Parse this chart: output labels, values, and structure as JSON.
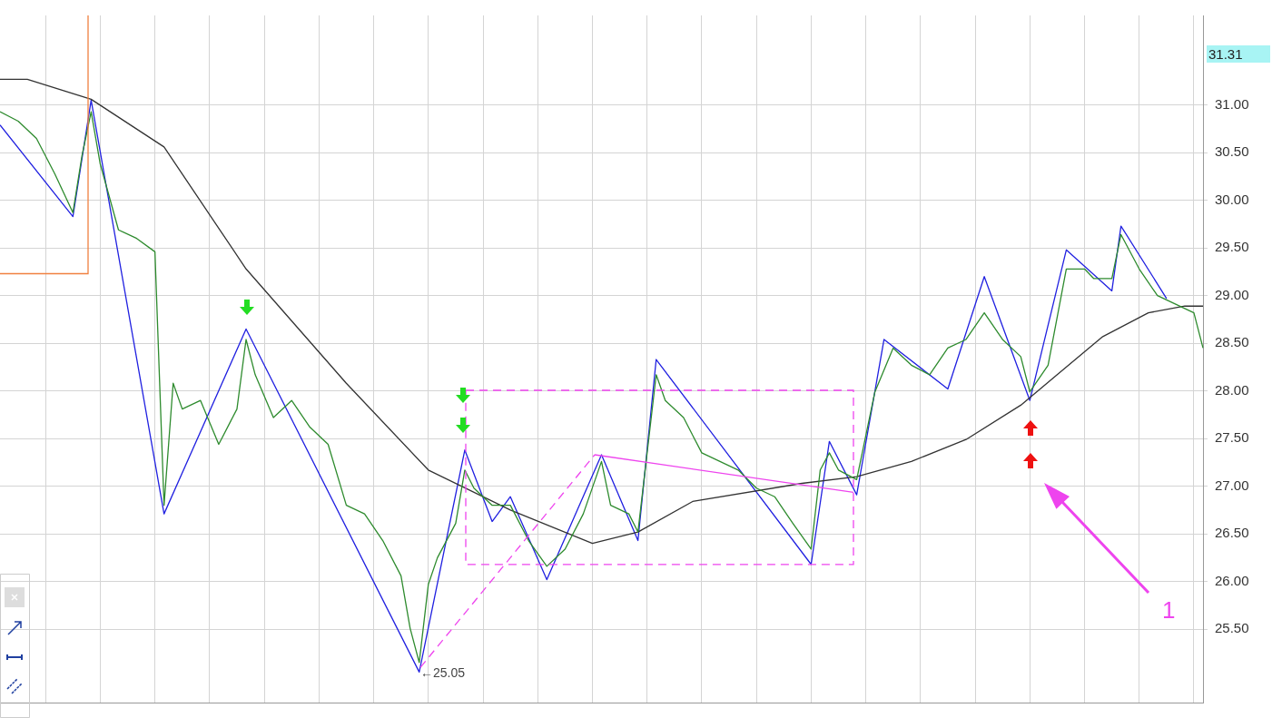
{
  "chart_data": {
    "type": "line",
    "categories": [
      null,
      null,
      null,
      null,
      null,
      null,
      null,
      null,
      null,
      null,
      null,
      null,
      null,
      null,
      null,
      null,
      null,
      null,
      null,
      null,
      null,
      null,
      null,
      null,
      null,
      null,
      null,
      null,
      null,
      null,
      null,
      null,
      null,
      null,
      null,
      null,
      null,
      null,
      null,
      null,
      null,
      null,
      null,
      null,
      null,
      null,
      null,
      null,
      null,
      null,
      null,
      null,
      null,
      null,
      null,
      null,
      null,
      null,
      null,
      null,
      null,
      null,
      null,
      null,
      null,
      null,
      null,
      null,
      null,
      null,
      null,
      null,
      null,
      null,
      null,
      null,
      null,
      null,
      null,
      null,
      null,
      null,
      null,
      null,
      null,
      null,
      null,
      null,
      null,
      null,
      null,
      null,
      null,
      null,
      null,
      null,
      null,
      null,
      null,
      null,
      null,
      null,
      null,
      null,
      null,
      null,
      null,
      null,
      null,
      null,
      null,
      null,
      null,
      null,
      null,
      null,
      null,
      null,
      null,
      null,
      null,
      null,
      null,
      null,
      null,
      null,
      null,
      null,
      null,
      null,
      null,
      null,
      null
    ],
    "ylim": [
      24.73,
      31.94
    ],
    "yticks": [
      {
        "value": 25.5,
        "label": "25.50"
      },
      {
        "value": 26,
        "label": "26.00"
      },
      {
        "value": 26.5,
        "label": "26.50"
      },
      {
        "value": 27,
        "label": "27.00"
      },
      {
        "value": 27.5,
        "label": "27.50"
      },
      {
        "value": 28,
        "label": "28.00"
      },
      {
        "value": 28.5,
        "label": "28.50"
      },
      {
        "value": 29,
        "label": "29.00"
      },
      {
        "value": 29.5,
        "label": "29.50"
      },
      {
        "value": 30,
        "label": "30.00"
      },
      {
        "value": 30.5,
        "label": "30.50"
      },
      {
        "value": 31,
        "label": "31.00"
      }
    ],
    "tick_labels": "y",
    "grid": true,
    "legend": false,
    "marker": "none",
    "series": [
      {
        "color": "#2e8b2e",
        "values": [
          30.93,
          null,
          30.83,
          null,
          30.65,
          null,
          30.28,
          null,
          29.87,
          30.47,
          30.93,
          30.38,
          null,
          29.69,
          null,
          29.6,
          null,
          29.46,
          26.8,
          28.08,
          27.81,
          null,
          27.9,
          null,
          27.44,
          null,
          27.81,
          28.54,
          28.17,
          null,
          27.72,
          null,
          27.9,
          null,
          27.62,
          null,
          27.44,
          null,
          26.8,
          null,
          26.71,
          null,
          26.43,
          null,
          26.06,
          25.51,
          25.15,
          25.97,
          26.25,
          null,
          26.61,
          27.17,
          26.98,
          null,
          26.8,
          null,
          26.8,
          null,
          26.43,
          null,
          26.16,
          null,
          26.34,
          null,
          26.71,
          null,
          27.26,
          26.8,
          null,
          26.71,
          26.52,
          null,
          28.17,
          27.9,
          null,
          27.72,
          null,
          27.35,
          null,
          27.26,
          null,
          27.17,
          null,
          26.98,
          null,
          26.89,
          null,
          26.61,
          null,
          26.34,
          27.17,
          27.35,
          27.17,
          null,
          27.07,
          null,
          27.99,
          null,
          28.45,
          null,
          28.27,
          null,
          28.17,
          null,
          28.45,
          null,
          28.54,
          null,
          28.82,
          null,
          28.54,
          null,
          28.36,
          27.99,
          null,
          28.27,
          null,
          29.28,
          null,
          29.28,
          29.18,
          null,
          29.18,
          29.64,
          null,
          29.28,
          null,
          29.0,
          null,
          28.91,
          null,
          28.82,
          28.45
        ]
      },
      {
        "color": "#333333",
        "values": [
          31.27,
          null,
          null,
          31.27,
          null,
          null,
          null,
          null,
          null,
          null,
          31.06,
          null,
          null,
          null,
          null,
          null,
          null,
          null,
          30.56,
          null,
          null,
          null,
          null,
          null,
          null,
          null,
          null,
          29.28,
          null,
          null,
          null,
          null,
          null,
          null,
          null,
          null,
          null,
          null,
          28.08,
          null,
          null,
          null,
          null,
          null,
          null,
          null,
          null,
          27.17,
          null,
          null,
          null,
          null,
          null,
          null,
          null,
          null,
          26.75,
          null,
          null,
          null,
          null,
          null,
          null,
          null,
          null,
          26.4,
          null,
          null,
          null,
          null,
          26.52,
          null,
          null,
          null,
          null,
          null,
          26.84,
          null,
          null,
          null,
          null,
          null,
          null,
          null,
          null,
          null,
          null,
          null,
          27.03,
          null,
          null,
          null,
          null,
          null,
          27.1,
          null,
          null,
          null,
          null,
          null,
          27.26,
          null,
          null,
          null,
          null,
          null,
          27.49,
          null,
          null,
          null,
          null,
          null,
          27.85,
          null,
          null,
          null,
          28.17,
          null,
          null,
          null,
          null,
          28.57,
          null,
          null,
          null,
          null,
          28.82,
          null,
          null,
          null,
          28.89,
          null,
          28.89
        ]
      },
      {
        "color": "#2020e0",
        "values": [
          30.79,
          null,
          null,
          null,
          null,
          null,
          null,
          null,
          29.83,
          null,
          31.05,
          null,
          null,
          null,
          null,
          null,
          null,
          null,
          26.71,
          null,
          null,
          null,
          null,
          null,
          null,
          null,
          null,
          28.65,
          null,
          null,
          null,
          null,
          null,
          null,
          null,
          null,
          null,
          null,
          null,
          null,
          null,
          null,
          null,
          null,
          null,
          null,
          25.05,
          null,
          null,
          null,
          null,
          27.38,
          null,
          null,
          26.63,
          null,
          26.89,
          null,
          null,
          null,
          26.02,
          null,
          null,
          null,
          null,
          null,
          27.33,
          null,
          null,
          null,
          26.43,
          null,
          28.33,
          null,
          null,
          null,
          null,
          null,
          null,
          null,
          null,
          null,
          null,
          null,
          null,
          null,
          null,
          null,
          null,
          26.18,
          null,
          27.47,
          null,
          null,
          26.91,
          null,
          null,
          28.54,
          null,
          null,
          null,
          null,
          null,
          null,
          28.02,
          null,
          null,
          null,
          29.2,
          null,
          null,
          null,
          null,
          27.9,
          null,
          null,
          null,
          29.48,
          null,
          null,
          null,
          null,
          29.05,
          29.73,
          null,
          null,
          null,
          null,
          28.97,
          null,
          null,
          null,
          null
        ]
      }
    ],
    "annotations": [
      "31.31",
      "←25.05",
      "1"
    ]
  }
}
